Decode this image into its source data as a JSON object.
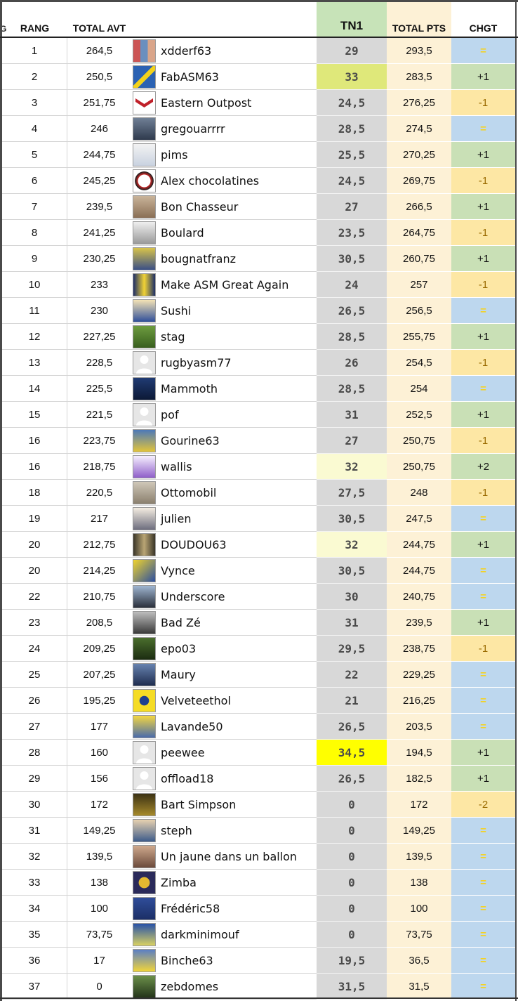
{
  "headers": {
    "rang": "RANG",
    "total_avt": "TOTAL AVT",
    "tn1": "TN1",
    "total_pts": "TOTAL PTS",
    "chgt": "CHGT",
    "cut_mark": "G"
  },
  "colors": {
    "tn1_column": "#d8d8d8",
    "tn1_header": "#c7e3b8",
    "total_pts_column": "#fdf1d6",
    "change_up": "#c9e0b6",
    "change_down": "#fde7a4",
    "change_same": "#bdd7ee",
    "tn1_highlight_strong": "#ffff00",
    "tn1_highlight_medium": "#dfe87a",
    "tn1_highlight_light": "#fafad2"
  },
  "rows": [
    {
      "rang": "1",
      "total_avt": "264,5",
      "name": "xdderf63",
      "tn1": "29",
      "total_pts": "293,5",
      "chgt": "=",
      "trend": "same",
      "tn1_hl": "",
      "avatar": "collage-avatar"
    },
    {
      "rang": "2",
      "total_avt": "250,5",
      "name": "FabASM63",
      "tn1": "33",
      "total_pts": "283,5",
      "chgt": "+1",
      "trend": "up",
      "tn1_hl": "medium",
      "avatar": "banner-avatar"
    },
    {
      "rang": "3",
      "total_avt": "251,75",
      "name": "Eastern Outpost",
      "tn1": "24,5",
      "total_pts": "276,25",
      "chgt": "-1",
      "trend": "down",
      "tn1_hl": "",
      "avatar": "red-logo-avatar"
    },
    {
      "rang": "4",
      "total_avt": "246",
      "name": "gregouarrrr",
      "tn1": "28,5",
      "total_pts": "274,5",
      "chgt": "=",
      "trend": "same",
      "tn1_hl": "",
      "avatar": "player-avatar"
    },
    {
      "rang": "5",
      "total_avt": "244,75",
      "name": "pims",
      "tn1": "25,5",
      "total_pts": "270,25",
      "chgt": "+1",
      "trend": "up",
      "tn1_hl": "",
      "avatar": "cartoon-avatar"
    },
    {
      "rang": "6",
      "total_avt": "245,25",
      "name": "Alex chocolatines",
      "tn1": "24,5",
      "total_pts": "269,75",
      "chgt": "-1",
      "trend": "down",
      "tn1_hl": "",
      "avatar": "club-crest-avatar"
    },
    {
      "rang": "7",
      "total_avt": "239,5",
      "name": "Bon Chasseur",
      "tn1": "27",
      "total_pts": "266,5",
      "chgt": "+1",
      "trend": "up",
      "tn1_hl": "",
      "avatar": "cat-avatar"
    },
    {
      "rang": "8",
      "total_avt": "241,25",
      "name": "Boulard",
      "tn1": "23,5",
      "total_pts": "264,75",
      "chgt": "-1",
      "trend": "down",
      "tn1_hl": "",
      "avatar": "sketch-avatar"
    },
    {
      "rang": "9",
      "total_avt": "230,25",
      "name": "bougnatfranz",
      "tn1": "30,5",
      "total_pts": "260,75",
      "chgt": "+1",
      "trend": "up",
      "tn1_hl": "",
      "avatar": "crowd-avatar"
    },
    {
      "rang": "10",
      "total_avt": "233",
      "name": "Make ASM Great Again",
      "tn1": "24",
      "total_pts": "257",
      "chgt": "-1",
      "trend": "down",
      "tn1_hl": "",
      "avatar": "poster-avatar"
    },
    {
      "rang": "11",
      "total_avt": "230",
      "name": "Sushi",
      "tn1": "26,5",
      "total_pts": "256,5",
      "chgt": "=",
      "trend": "same",
      "tn1_hl": "",
      "avatar": "card-avatar"
    },
    {
      "rang": "12",
      "total_avt": "227,25",
      "name": "stag",
      "tn1": "28,5",
      "total_pts": "255,75",
      "chgt": "+1",
      "trend": "up",
      "tn1_hl": "",
      "avatar": "field-avatar"
    },
    {
      "rang": "13",
      "total_avt": "228,5",
      "name": "rugbyasm77",
      "tn1": "26",
      "total_pts": "254,5",
      "chgt": "-1",
      "trend": "down",
      "tn1_hl": "",
      "avatar": "default-avatar"
    },
    {
      "rang": "14",
      "total_avt": "225,5",
      "name": "Mammoth",
      "tn1": "28,5",
      "total_pts": "254",
      "chgt": "=",
      "trend": "same",
      "tn1_hl": "",
      "avatar": "screen-avatar"
    },
    {
      "rang": "15",
      "total_avt": "221,5",
      "name": "pof",
      "tn1": "31",
      "total_pts": "252,5",
      "chgt": "+1",
      "trend": "up",
      "tn1_hl": "",
      "avatar": "default-avatar"
    },
    {
      "rang": "16",
      "total_avt": "223,75",
      "name": "Gourine63",
      "tn1": "27",
      "total_pts": "250,75",
      "chgt": "-1",
      "trend": "down",
      "tn1_hl": "",
      "avatar": "jersey-avatar"
    },
    {
      "rang": "16",
      "total_avt": "218,75",
      "name": "wallis",
      "tn1": "32",
      "total_pts": "250,75",
      "chgt": "+2",
      "trend": "up",
      "tn1_hl": "light",
      "avatar": "yesss-avatar"
    },
    {
      "rang": "18",
      "total_avt": "220,5",
      "name": "Ottomobil",
      "tn1": "27,5",
      "total_pts": "248",
      "chgt": "-1",
      "trend": "down",
      "tn1_hl": "",
      "avatar": "building-avatar"
    },
    {
      "rang": "19",
      "total_avt": "217",
      "name": "julien",
      "tn1": "30,5",
      "total_pts": "247,5",
      "chgt": "=",
      "trend": "same",
      "tn1_hl": "",
      "avatar": "drawing-avatar"
    },
    {
      "rang": "20",
      "total_avt": "212,75",
      "name": "DOUDOU63",
      "tn1": "32",
      "total_pts": "244,75",
      "chgt": "+1",
      "trend": "up",
      "tn1_hl": "light",
      "avatar": "frame-avatar"
    },
    {
      "rang": "20",
      "total_avt": "214,25",
      "name": "Vynce",
      "tn1": "30,5",
      "total_pts": "244,75",
      "chgt": "=",
      "trend": "same",
      "tn1_hl": "",
      "avatar": "yellow-player-avatar"
    },
    {
      "rang": "22",
      "total_avt": "210,75",
      "name": "Underscore",
      "tn1": "30",
      "total_pts": "240,75",
      "chgt": "=",
      "trend": "same",
      "tn1_hl": "",
      "avatar": "statue-avatar"
    },
    {
      "rang": "23",
      "total_avt": "208,5",
      "name": "Bad Zé",
      "tn1": "31",
      "total_pts": "239,5",
      "chgt": "+1",
      "trend": "up",
      "tn1_hl": "",
      "avatar": "bw-photo-avatar"
    },
    {
      "rang": "24",
      "total_avt": "209,25",
      "name": "epo03",
      "tn1": "29,5",
      "total_pts": "238,75",
      "chgt": "-1",
      "trend": "down",
      "tn1_hl": "",
      "avatar": "match-avatar"
    },
    {
      "rang": "25",
      "total_avt": "207,25",
      "name": "Maury",
      "tn1": "22",
      "total_pts": "229,25",
      "chgt": "=",
      "trend": "same",
      "tn1_hl": "",
      "avatar": "band-avatar"
    },
    {
      "rang": "26",
      "total_avt": "195,25",
      "name": "Velveteethol",
      "tn1": "21",
      "total_pts": "216,25",
      "chgt": "=",
      "trend": "same",
      "tn1_hl": "",
      "avatar": "skull-avatar"
    },
    {
      "rang": "27",
      "total_avt": "177",
      "name": "Lavande50",
      "tn1": "26,5",
      "total_pts": "203,5",
      "chgt": "=",
      "trend": "same",
      "tn1_hl": "",
      "avatar": "yellow-jersey-avatar"
    },
    {
      "rang": "28",
      "total_avt": "160",
      "name": "peewee",
      "tn1": "34,5",
      "total_pts": "194,5",
      "chgt": "+1",
      "trend": "up",
      "tn1_hl": "strong",
      "avatar": "default-avatar"
    },
    {
      "rang": "29",
      "total_avt": "156",
      "name": "offload18",
      "tn1": "26,5",
      "total_pts": "182,5",
      "chgt": "+1",
      "trend": "up",
      "tn1_hl": "",
      "avatar": "default-avatar"
    },
    {
      "rang": "30",
      "total_avt": "172",
      "name": "Bart Simpson",
      "tn1": "0",
      "total_pts": "172",
      "chgt": "-2",
      "trend": "down",
      "tn1_hl": "",
      "avatar": "dark-crowd-avatar"
    },
    {
      "rang": "31",
      "total_avt": "149,25",
      "name": "steph",
      "tn1": "0",
      "total_pts": "149,25",
      "chgt": "=",
      "trend": "same",
      "tn1_hl": "",
      "avatar": "cartoon-face-avatar"
    },
    {
      "rang": "32",
      "total_avt": "139,5",
      "name": "Un jaune dans un ballon",
      "tn1": "0",
      "total_pts": "139,5",
      "chgt": "=",
      "trend": "same",
      "tn1_hl": "",
      "avatar": "face-avatar"
    },
    {
      "rang": "33",
      "total_avt": "138",
      "name": "Zimba",
      "tn1": "0",
      "total_pts": "138",
      "chgt": "=",
      "trend": "same",
      "tn1_hl": "",
      "avatar": "emblem-avatar"
    },
    {
      "rang": "34",
      "total_avt": "100",
      "name": "Frédéric58",
      "tn1": "0",
      "total_pts": "100",
      "chgt": "=",
      "trend": "same",
      "tn1_hl": "",
      "avatar": "blue-badge-avatar"
    },
    {
      "rang": "35",
      "total_avt": "73,75",
      "name": "darkminimouf",
      "tn1": "0",
      "total_pts": "73,75",
      "chgt": "=",
      "trend": "same",
      "tn1_hl": "",
      "avatar": "blue-player-avatar"
    },
    {
      "rang": "36",
      "total_avt": "17",
      "name": "Binche63",
      "tn1": "19,5",
      "total_pts": "36,5",
      "chgt": "=",
      "trend": "same",
      "tn1_hl": "",
      "avatar": "team-avatar"
    },
    {
      "rang": "37",
      "total_avt": "0",
      "name": "zebdomes",
      "tn1": "31,5",
      "total_pts": "31,5",
      "chgt": "=",
      "trend": "same",
      "tn1_hl": "",
      "avatar": "action-avatar"
    }
  ]
}
